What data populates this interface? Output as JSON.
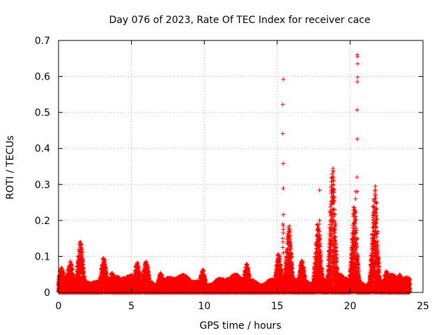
{
  "chart_data": {
    "type": "scatter",
    "title": "Day 076 of 2023, Rate Of TEC Index for receiver cace",
    "xlabel": "GPS time / hours",
    "ylabel": "ROTI / TECUs",
    "xlim": [
      0,
      25
    ],
    "ylim": [
      0,
      0.7
    ],
    "xticks": [
      "0",
      "5",
      "10",
      "15",
      "20",
      "25"
    ],
    "yticks": [
      "0",
      "0.1",
      "0.2",
      "0.3",
      "0.4",
      "0.5",
      "0.6",
      "0.7"
    ],
    "grid": true,
    "marker": "+",
    "color": "#ff0000",
    "baseline": {
      "x_range": [
        0,
        24.1
      ],
      "description_values": "dense band of points between 0 and ~0.05 across the whole day",
      "peaks": [
        {
          "x": 0.2,
          "y": 0.07
        },
        {
          "x": 0.8,
          "y": 0.09
        },
        {
          "x": 1.5,
          "y": 0.145
        },
        {
          "x": 3.1,
          "y": 0.1
        },
        {
          "x": 3.7,
          "y": 0.06
        },
        {
          "x": 5.4,
          "y": 0.085
        },
        {
          "x": 6.0,
          "y": 0.09
        },
        {
          "x": 7.0,
          "y": 0.055
        },
        {
          "x": 9.9,
          "y": 0.065
        },
        {
          "x": 12.9,
          "y": 0.08
        },
        {
          "x": 15.1,
          "y": 0.11
        },
        {
          "x": 15.8,
          "y": 0.185
        },
        {
          "x": 16.7,
          "y": 0.09
        },
        {
          "x": 17.8,
          "y": 0.2
        },
        {
          "x": 18.8,
          "y": 0.345
        },
        {
          "x": 20.3,
          "y": 0.25
        },
        {
          "x": 21.7,
          "y": 0.3
        },
        {
          "x": 22.5,
          "y": 0.06
        },
        {
          "x": 23.4,
          "y": 0.05
        }
      ]
    },
    "spikes": [
      {
        "x": 15.4,
        "values": [
          0.592,
          0.522,
          0.441,
          0.358,
          0.289,
          0.216,
          0.19,
          0.185,
          0.175,
          0.165,
          0.15,
          0.14,
          0.125,
          0.11
        ]
      },
      {
        "x": 15.85,
        "values": [
          0.185,
          0.175,
          0.16,
          0.14,
          0.12,
          0.1,
          0.08
        ]
      },
      {
        "x": 17.9,
        "values": [
          0.284,
          0.2,
          0.19,
          0.17,
          0.15,
          0.13,
          0.11,
          0.09
        ]
      },
      {
        "x": 18.85,
        "values": [
          0.345,
          0.335,
          0.32,
          0.3,
          0.28,
          0.25,
          0.22,
          0.2,
          0.18,
          0.15,
          0.12,
          0.1
        ]
      },
      {
        "x": 20.35,
        "values": [
          0.28,
          0.26,
          0.23,
          0.21,
          0.19,
          0.17,
          0.15
        ]
      },
      {
        "x": 20.5,
        "values": [
          0.66,
          0.655,
          0.635,
          0.598,
          0.585,
          0.507,
          0.426,
          0.32,
          0.28,
          0.15
        ]
      },
      {
        "x": 21.6,
        "values": [
          0.24,
          0.2,
          0.18,
          0.15,
          0.12,
          0.1,
          0.08
        ]
      },
      {
        "x": 21.75,
        "values": [
          0.295,
          0.285,
          0.27,
          0.25,
          0.23,
          0.2,
          0.17,
          0.14,
          0.11,
          0.08
        ]
      }
    ]
  }
}
